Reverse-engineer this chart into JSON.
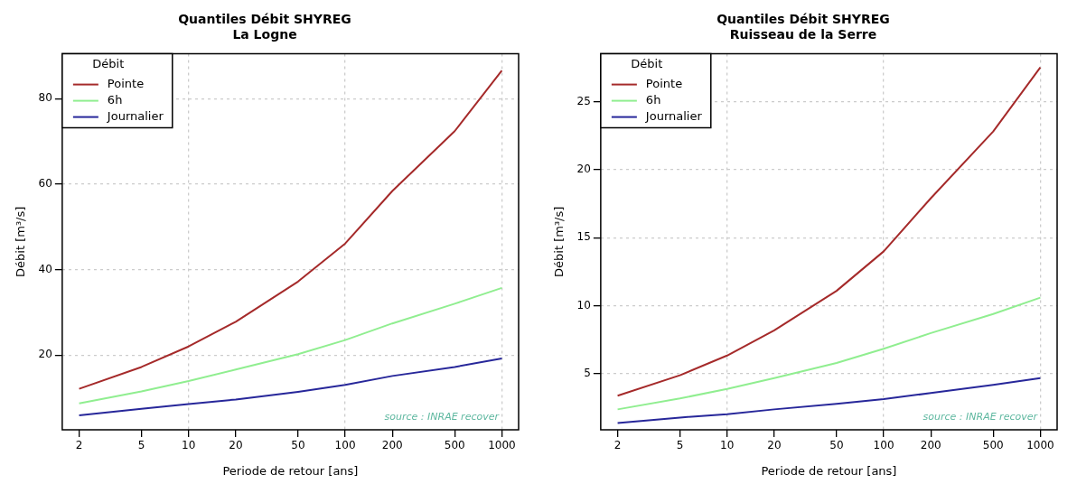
{
  "chart_data": [
    {
      "type": "line",
      "title": "Quantiles Débit SHYREG",
      "subtitle": "La Logne",
      "xlabel": "Periode de retour [ans]",
      "ylabel": "Débit [m³/s]",
      "legend_title": "Débit",
      "legend": "top left",
      "grid": true,
      "log": "x",
      "annotations": [
        "source : INRAE recover"
      ],
      "x": [
        2,
        5,
        10,
        20,
        50,
        100,
        200,
        500,
        1000
      ],
      "xlim": [
        1.56,
        1280
      ],
      "xticks": [
        2,
        5,
        10,
        20,
        50,
        100,
        200,
        500,
        1000
      ],
      "ylim": [
        2.5,
        90.5
      ],
      "yticks": [
        20,
        40,
        60,
        80
      ],
      "series": [
        {
          "name": "Pointe",
          "color": "#a52a2a",
          "values": [
            12.1,
            17.2,
            22.0,
            27.8,
            37.2,
            46.1,
            58.4,
            72.4,
            86.6
          ]
        },
        {
          "name": "6h",
          "color": "#90ee90",
          "values": [
            8.7,
            11.5,
            13.9,
            16.6,
            20.2,
            23.5,
            27.4,
            32.0,
            35.7
          ]
        },
        {
          "name": "Journalier",
          "color": "#27279a",
          "values": [
            5.9,
            7.4,
            8.5,
            9.6,
            11.4,
            13.0,
            15.1,
            17.2,
            19.2
          ]
        }
      ]
    },
    {
      "type": "line",
      "title": "Quantiles Débit SHYREG",
      "subtitle": "Ruisseau de la Serre",
      "xlabel": "Periode de retour [ans]",
      "ylabel": "Débit [m³/s]",
      "legend_title": "Débit",
      "legend": "top left",
      "grid": true,
      "log": "x",
      "annotations": [
        "source : INRAE recover"
      ],
      "x": [
        2,
        5,
        10,
        20,
        50,
        100,
        200,
        500,
        1000
      ],
      "xlim": [
        1.56,
        1280
      ],
      "xticks": [
        2,
        5,
        10,
        20,
        50,
        100,
        200,
        500,
        1000
      ],
      "ylim": [
        0.9,
        28.5
      ],
      "yticks": [
        5,
        10,
        15,
        20,
        25
      ],
      "series": [
        {
          "name": "Pointe",
          "color": "#a52a2a",
          "values": [
            3.4,
            4.9,
            6.35,
            8.2,
            11.1,
            14.0,
            17.9,
            22.8,
            27.5
          ]
        },
        {
          "name": "6h",
          "color": "#90ee90",
          "values": [
            2.4,
            3.2,
            3.9,
            4.7,
            5.8,
            6.85,
            8.0,
            9.4,
            10.6
          ]
        },
        {
          "name": "Journalier",
          "color": "#27279a",
          "values": [
            1.4,
            1.8,
            2.05,
            2.4,
            2.8,
            3.15,
            3.6,
            4.2,
            4.7
          ]
        }
      ]
    }
  ]
}
